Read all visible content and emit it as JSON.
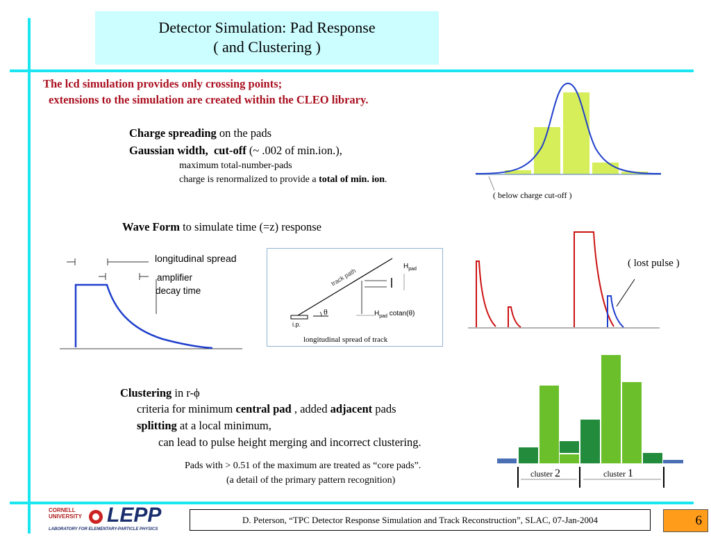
{
  "title": {
    "line1": "Detector Simulation: Pad Response",
    "line2": "( and Clustering )"
  },
  "intro": {
    "line1": "The lcd simulation provides only crossing points;",
    "line2": "extensions to the simulation are created within the CLEO library."
  },
  "charge": {
    "label_bold": "Charge spreading",
    "label_rest": " on the pads",
    "width_bold1": "Gaussian width,",
    "width_bold2": "cut-off",
    "width_rest": " (~ .002 of min.ion.),",
    "sub1": "maximum total-number-pads",
    "sub2_pre": "charge is renormalized to provide a ",
    "sub2_bold": "total of min. ion",
    "sub2_post": ".",
    "below_cutoff": "( below charge cut-off )"
  },
  "wave": {
    "label_bold": "Wave Form",
    "label_rest": " to simulate time (=z) response",
    "long_spread": "longitudinal spread",
    "amplifier": "amplifier",
    "decay_time": "decay time",
    "track_path": "track path",
    "H": "H",
    "pad": "pad",
    "theta": "θ",
    "cotan": " cotan(θ)",
    "ip": "i.p.",
    "long_spread_track": "longitudinal spread of track",
    "lost_pulse": "( lost pulse )"
  },
  "clustering": {
    "label_bold": "Clustering",
    "label_rest": " in r-ϕ",
    "line1_pre": "criteria for minimum ",
    "line1_b1": "central pad",
    "line1_mid": " , added ",
    "line1_b2": "adjacent",
    "line1_post": " pads",
    "line2_bold": "splitting",
    "line2_rest": " at a local minimum,",
    "line3": "can lead to pulse height merging and incorrect clustering.",
    "note1": "Pads with > 0.51 of the maximum are treated as “core pads”.",
    "note2": "(a detail of the primary pattern recognition)",
    "cluster_word": "cluster",
    "cluster2_num": "2",
    "cluster1_num": "1"
  },
  "footer": {
    "text": "D. Peterson, “TPC Detector Response Simulation and Track Reconstruction”, SLAC, 07-Jan-2004",
    "page": "6",
    "logo_cornell": "CORNELL",
    "logo_university": "UNIVERSITY",
    "logo_lepp": "LEPP",
    "logo_lab": "LABORATORY FOR ELEMENTARY-PARTICLE PHYSICS"
  },
  "colors": {
    "cyan": "#19e6f0",
    "title_bg": "#ccfdff",
    "red_text": "#aa1020",
    "green_bar": "#d6ee5a",
    "gauss_blue": "#1f3fcc",
    "cluster_light": "#6bbf2a",
    "cluster_dark": "#228b3c",
    "cluster_blue": "#4a6fb5",
    "page_orange": "#ff9c1a"
  }
}
